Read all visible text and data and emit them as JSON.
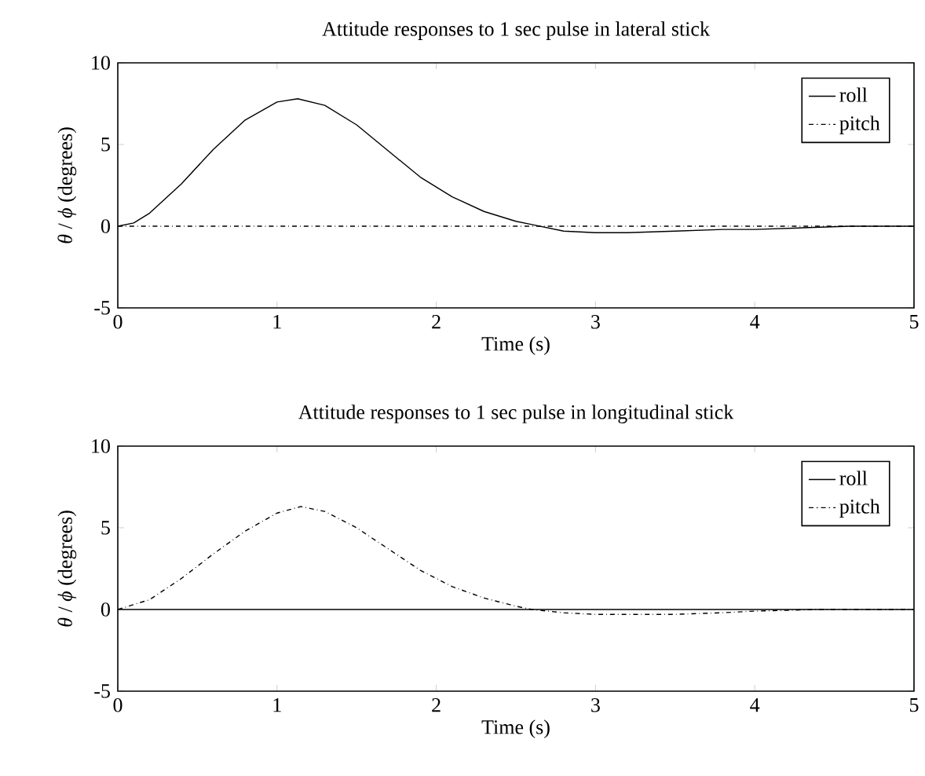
{
  "chart_data": [
    {
      "type": "line",
      "title": "Attitude responses to 1 sec pulse in lateral stick",
      "xlabel": "Time (s)",
      "ylabel": "*θ* / *ϕ* (degrees)",
      "xlim": [
        0,
        5
      ],
      "ylim": [
        -5,
        10
      ],
      "xticks": [
        0,
        1,
        2,
        3,
        4,
        5
      ],
      "yticks": [
        -5,
        0,
        5,
        10
      ],
      "legend": "top right",
      "grid": false,
      "series": [
        {
          "name": "roll",
          "color": "#000000",
          "line_style": "solid",
          "x": [
            0,
            0.1,
            0.2,
            0.4,
            0.6,
            0.8,
            1.0,
            1.13,
            1.3,
            1.5,
            1.7,
            1.9,
            2.1,
            2.3,
            2.5,
            2.6,
            2.8,
            3.0,
            3.2,
            3.5,
            3.8,
            4.0,
            4.3,
            4.6,
            5.0
          ],
          "values": [
            0,
            0.2,
            0.8,
            2.6,
            4.7,
            6.5,
            7.6,
            7.8,
            7.4,
            6.2,
            4.6,
            3.0,
            1.8,
            0.9,
            0.3,
            0.1,
            -0.3,
            -0.4,
            -0.4,
            -0.3,
            -0.2,
            -0.2,
            -0.1,
            0,
            0
          ]
        },
        {
          "name": "pitch",
          "color": "#000000",
          "line_style": "dashdot",
          "x": [
            0,
            5
          ],
          "values": [
            0,
            0
          ]
        }
      ]
    },
    {
      "type": "line",
      "title": "Attitude responses to 1 sec pulse in longitudinal stick",
      "xlabel": "Time (s)",
      "ylabel": "*θ* / *ϕ* (degrees)",
      "xlim": [
        0,
        5
      ],
      "ylim": [
        -5,
        10
      ],
      "xticks": [
        0,
        1,
        2,
        3,
        4,
        5
      ],
      "yticks": [
        -5,
        0,
        5,
        10
      ],
      "legend": "top right",
      "grid": false,
      "series": [
        {
          "name": "roll",
          "color": "#000000",
          "line_style": "solid",
          "x": [
            0,
            5
          ],
          "values": [
            0,
            0
          ]
        },
        {
          "name": "pitch",
          "color": "#000000",
          "line_style": "dashdot",
          "x": [
            0,
            0.2,
            0.4,
            0.6,
            0.8,
            1.0,
            1.15,
            1.3,
            1.5,
            1.7,
            1.9,
            2.1,
            2.3,
            2.5,
            2.6,
            2.8,
            3.0,
            3.2,
            3.5,
            3.8,
            4.0,
            4.4,
            5.0
          ],
          "values": [
            0,
            0.6,
            1.9,
            3.4,
            4.8,
            5.9,
            6.3,
            6.0,
            5.0,
            3.7,
            2.4,
            1.4,
            0.7,
            0.2,
            0,
            -0.2,
            -0.3,
            -0.3,
            -0.3,
            -0.2,
            -0.1,
            0,
            0
          ]
        }
      ]
    }
  ]
}
